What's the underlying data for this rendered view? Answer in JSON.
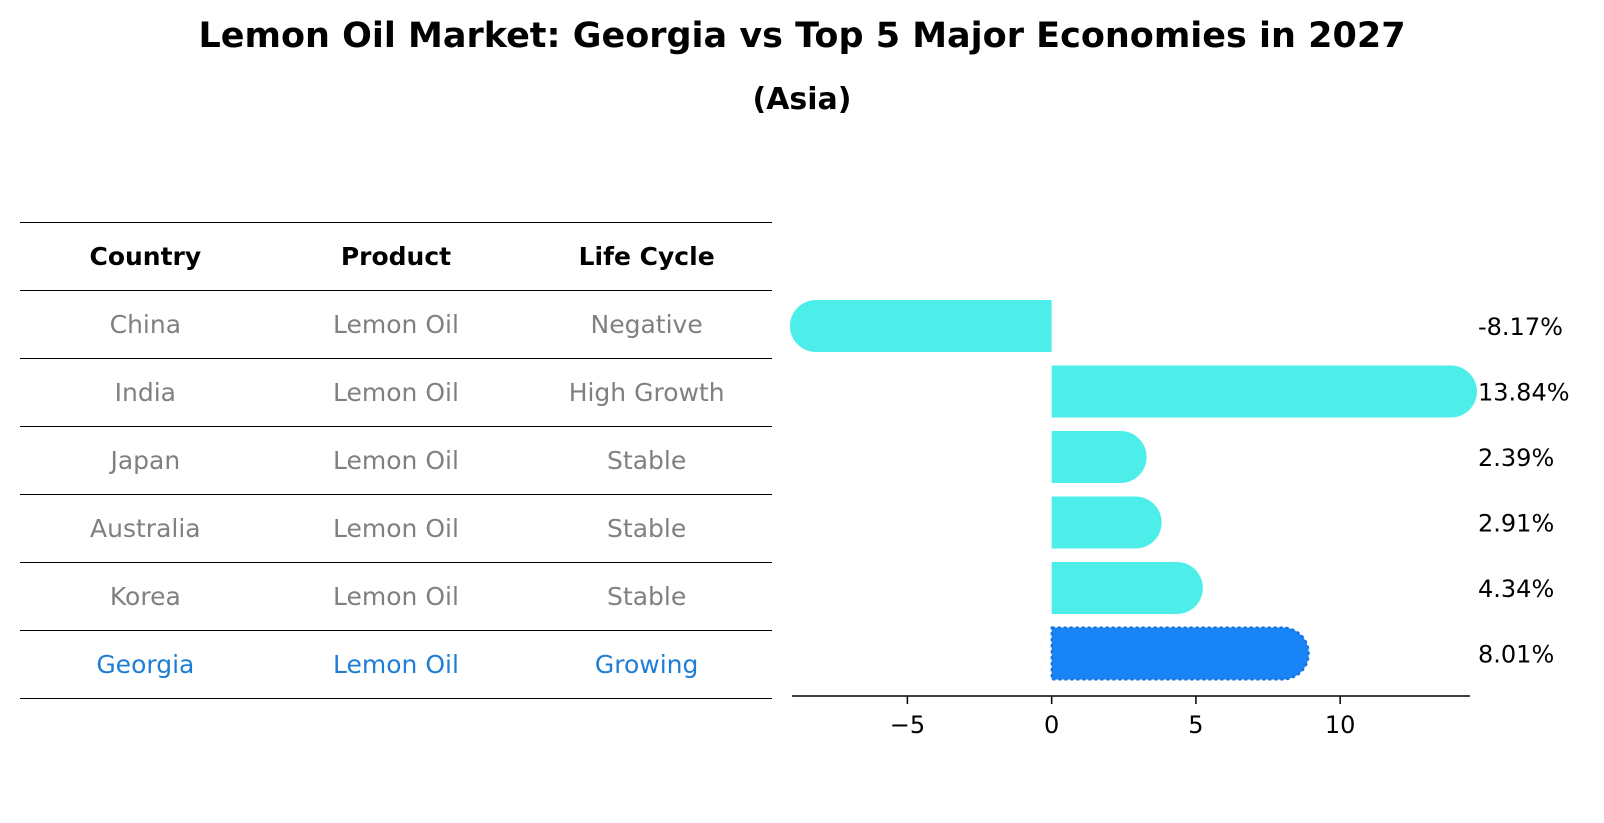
{
  "title": "Lemon Oil Market: Georgia vs Top 5 Major Economies in 2027",
  "subtitle": "(Asia)",
  "table": {
    "headers": [
      "Country",
      "Product",
      "Life Cycle"
    ],
    "rows": [
      {
        "country": "China",
        "product": "Lemon Oil",
        "life_cycle": "Negative"
      },
      {
        "country": "India",
        "product": "Lemon Oil",
        "life_cycle": "High Growth"
      },
      {
        "country": "Japan",
        "product": "Lemon Oil",
        "life_cycle": "Stable"
      },
      {
        "country": "Australia",
        "product": "Lemon Oil",
        "life_cycle": "Stable"
      },
      {
        "country": "Korea",
        "product": "Lemon Oil",
        "life_cycle": "Stable"
      },
      {
        "country": "Georgia",
        "product": "Lemon Oil",
        "life_cycle": "Growing"
      }
    ]
  },
  "chart_data": {
    "type": "bar",
    "orientation": "horizontal",
    "categories": [
      "China",
      "India",
      "Japan",
      "Australia",
      "Korea",
      "Georgia"
    ],
    "values": [
      -8.17,
      13.84,
      2.39,
      2.91,
      4.34,
      8.01
    ],
    "value_labels": [
      "-8.17%",
      "13.84%",
      "2.39%",
      "2.91%",
      "4.34%",
      "8.01%"
    ],
    "xlim": [
      -9,
      14.5
    ],
    "xticks": [
      -5,
      0,
      5,
      10
    ],
    "xtick_labels": [
      "−5",
      "0",
      "5",
      "10"
    ],
    "colors": {
      "default": "#4deeea",
      "highlight": "#1984f5"
    },
    "highlight_category": "Georgia"
  }
}
